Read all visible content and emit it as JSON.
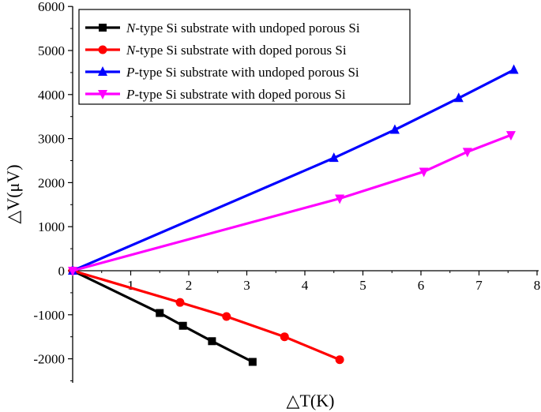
{
  "chart_data": {
    "type": "line",
    "title": "",
    "xlabel": "△T(K)",
    "ylabel": "△V(μV)",
    "xlim": [
      0,
      8
    ],
    "ylim": [
      -2500,
      6000
    ],
    "x_ticks": [
      "1",
      "2",
      "3",
      "4",
      "5",
      "6",
      "7",
      "8"
    ],
    "y_ticks": [
      "-2000",
      "-1000",
      "0",
      "1000",
      "2000",
      "3000",
      "4000",
      "5000",
      "6000"
    ],
    "grid": false,
    "legend_position": "top-left",
    "series": [
      {
        "name_prefix": "N",
        "name_suffix": "-type Si substrate with undoped porous Si",
        "color": "#000000",
        "marker": "square",
        "x": [
          0,
          1.5,
          1.9,
          2.4,
          3.1
        ],
        "y": [
          0,
          -960,
          -1250,
          -1600,
          -2070
        ]
      },
      {
        "name_prefix": "N",
        "name_suffix": "-type Si substrate with doped porous Si",
        "color": "#ff0000",
        "marker": "circle",
        "x": [
          0,
          1.85,
          2.65,
          3.65,
          4.6
        ],
        "y": [
          0,
          -720,
          -1040,
          -1500,
          -2020
        ]
      },
      {
        "name_prefix": "P",
        "name_suffix": "-type Si substrate with undoped porous Si",
        "color": "#0000ff",
        "marker": "triangle-up",
        "x": [
          0,
          4.5,
          5.55,
          6.65,
          7.6
        ],
        "y": [
          0,
          2560,
          3200,
          3920,
          4560
        ]
      },
      {
        "name_prefix": "P",
        "name_suffix": "-type Si substrate with doped porous Si",
        "color": "#ff00ff",
        "marker": "triangle-down",
        "x": [
          0,
          4.6,
          6.05,
          6.8,
          7.55
        ],
        "y": [
          0,
          1640,
          2250,
          2700,
          3080
        ]
      }
    ]
  }
}
